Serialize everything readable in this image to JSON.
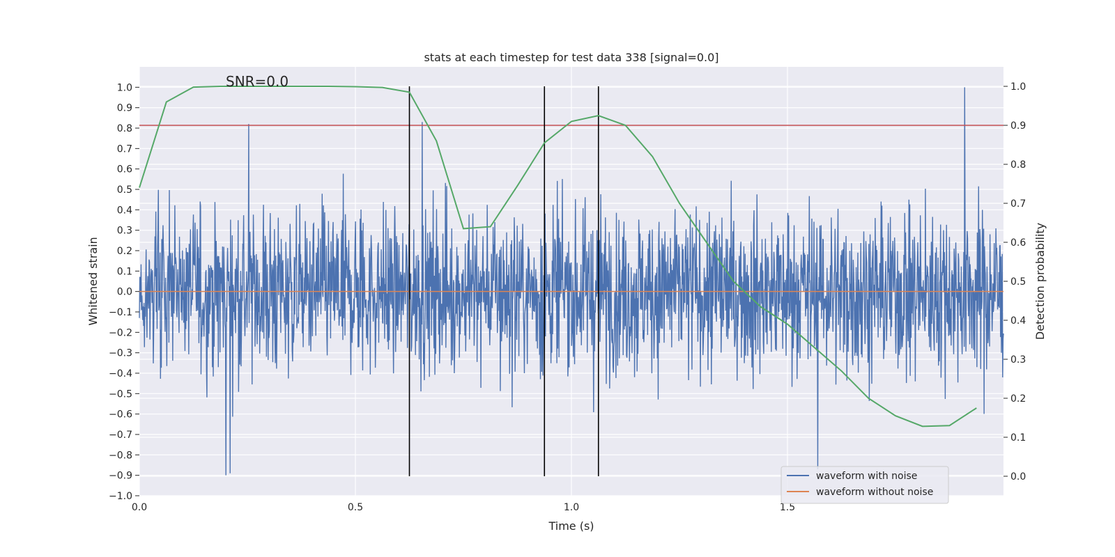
{
  "chart_data": {
    "type": "line",
    "title": "stats at each timestep for test data 338 [signal=0.0]",
    "annotation": "SNR=0.0",
    "xlabel": "Time (s)",
    "ylabel": "Whitened strain",
    "y2label": "Detection probability",
    "xlim": [
      0.0,
      2.0
    ],
    "ylim": [
      -1.0,
      1.1
    ],
    "y2lim": [
      -0.05,
      1.05
    ],
    "xticks": [
      0.0,
      0.5,
      1.0,
      1.5
    ],
    "xtick_labels": [
      "0.0",
      "0.5",
      "1.0",
      "1.5"
    ],
    "yticks": [
      -1.0,
      -0.9,
      -0.8,
      -0.7,
      -0.6,
      -0.5,
      -0.4,
      -0.3,
      -0.2,
      -0.1,
      0.0,
      0.1,
      0.2,
      0.3,
      0.4,
      0.5,
      0.6,
      0.7,
      0.8,
      0.9,
      1.0
    ],
    "ytick_labels": [
      "−1.0",
      "−0.9",
      "−0.8",
      "−0.7",
      "−0.6",
      "−0.5",
      "−0.4",
      "−0.3",
      "−0.2",
      "−0.1",
      "0.0",
      "0.1",
      "0.2",
      "0.3",
      "0.4",
      "0.5",
      "0.6",
      "0.7",
      "0.8",
      "0.9",
      "1.0"
    ],
    "y2ticks": [
      0.0,
      0.1,
      0.2,
      0.3,
      0.4,
      0.5,
      0.6,
      0.7,
      0.8,
      0.9,
      1.0
    ],
    "y2tick_labels": [
      "0.0",
      "0.1",
      "0.2",
      "0.3",
      "0.4",
      "0.5",
      "0.6",
      "0.7",
      "0.8",
      "0.9",
      "1.0"
    ],
    "grid": true,
    "legend_position": "bottom-right",
    "series": [
      {
        "name": "waveform with noise",
        "color": "#4c72b0",
        "axis": "left",
        "description": "noisy whitened strain, amplitude mostly within ±0.6, peaks near 1.0 at t≈1.91",
        "num_samples": 2048,
        "peaks": [
          {
            "x": 0.2,
            "y": -0.9
          },
          {
            "x": 0.21,
            "y": -0.89
          },
          {
            "x": 0.253,
            "y": 0.82
          },
          {
            "x": 0.655,
            "y": 0.83
          },
          {
            "x": 1.57,
            "y": -0.87
          },
          {
            "x": 1.91,
            "y": 1.0
          }
        ]
      },
      {
        "name": "waveform without noise",
        "color": "#dd8452",
        "axis": "left",
        "x": [
          0.0,
          2.0
        ],
        "y": [
          0.0,
          0.0
        ]
      },
      {
        "name": "detection probability",
        "color": "#55a868",
        "axis": "right",
        "x": [
          0.0,
          0.0625,
          0.125,
          0.1875,
          0.25,
          0.3125,
          0.375,
          0.4375,
          0.5,
          0.5625,
          0.625,
          0.6875,
          0.75,
          0.8125,
          0.875,
          0.9375,
          1.0,
          1.0625,
          1.125,
          1.1875,
          1.25,
          1.3125,
          1.375,
          1.4375,
          1.5,
          1.5625,
          1.625,
          1.6875,
          1.75,
          1.8125,
          1.875,
          1.9375
        ],
        "y": [
          0.74,
          0.96,
          0.998,
          1.0,
          1.0,
          1.0,
          1.0,
          1.0,
          0.999,
          0.997,
          0.985,
          0.86,
          0.635,
          0.64,
          0.745,
          0.855,
          0.91,
          0.925,
          0.9,
          0.82,
          0.7,
          0.6,
          0.5,
          0.435,
          0.39,
          0.33,
          0.27,
          0.2,
          0.155,
          0.128,
          0.13,
          0.175
        ]
      }
    ],
    "threshold_line": {
      "axis": "right",
      "value": 0.9,
      "color": "#c44e52"
    },
    "event_lines": [
      {
        "x": 0.625,
        "color": "#000000"
      },
      {
        "x": 0.9375,
        "color": "#000000"
      },
      {
        "x": 1.0625,
        "color": "#000000"
      }
    ]
  }
}
